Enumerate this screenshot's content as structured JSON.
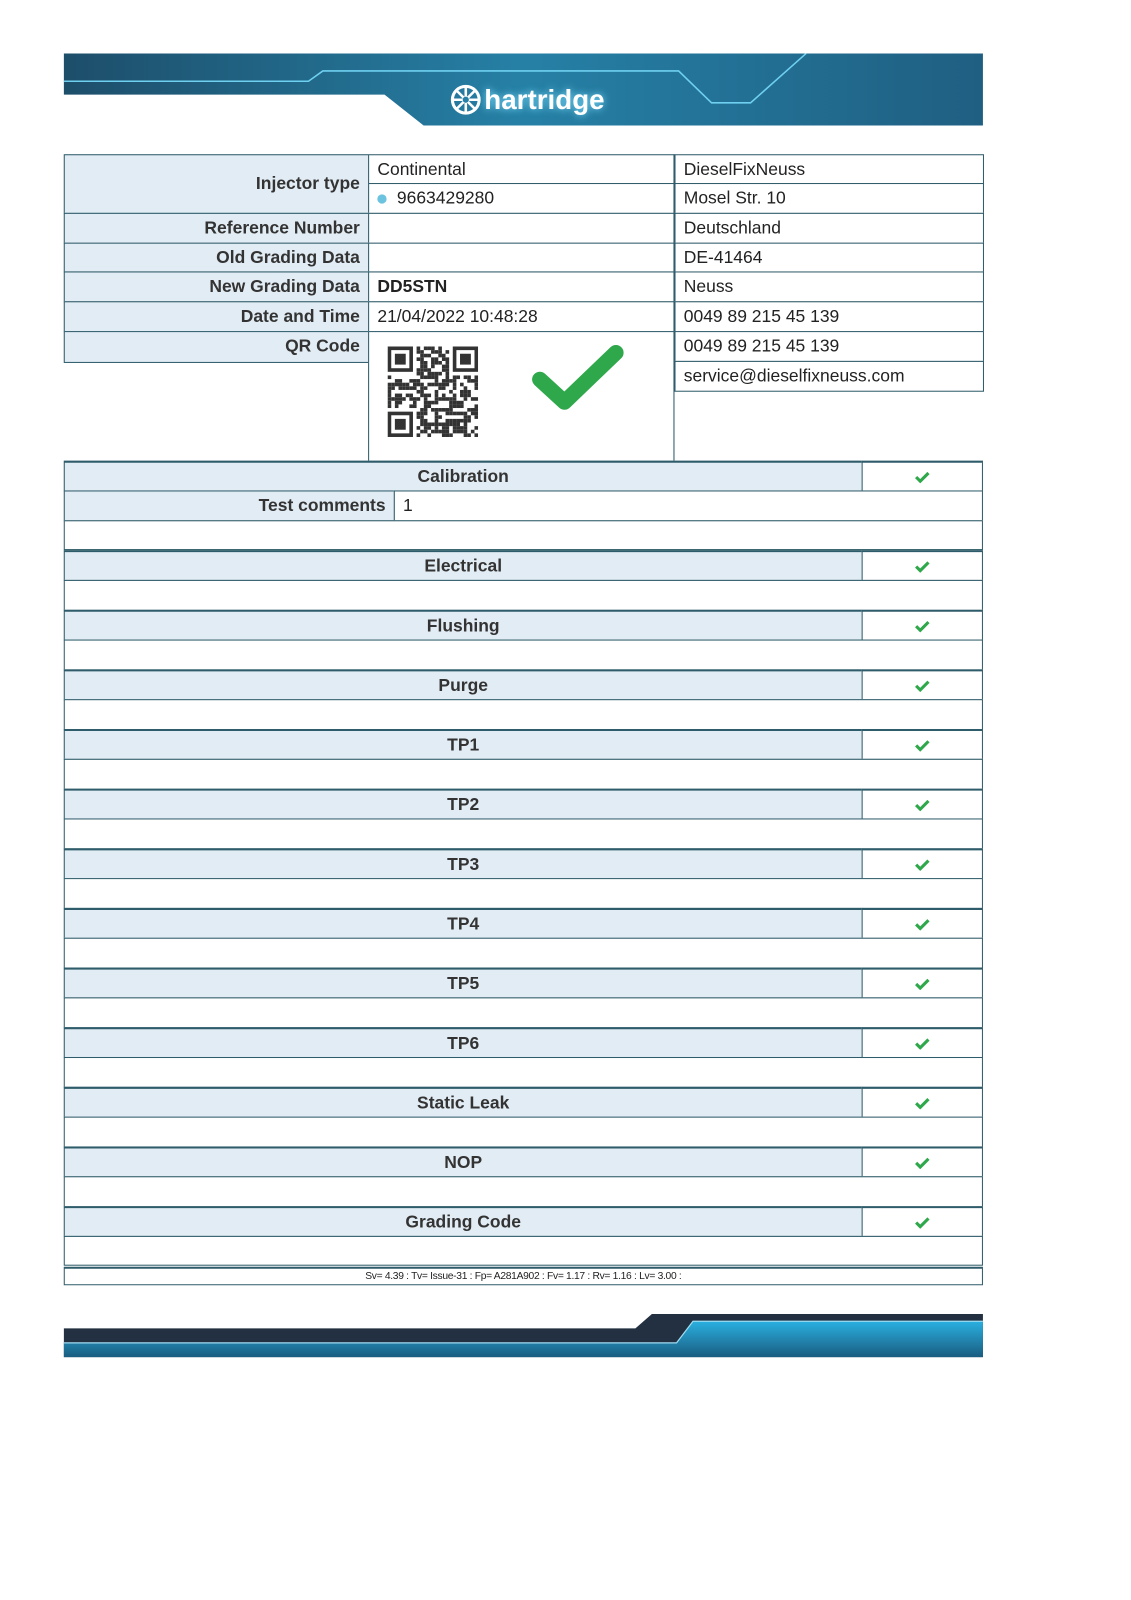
{
  "brand": {
    "logo_text": "hartridge",
    "colors": {
      "band_dark": "#1d4e6a",
      "band_light": "#2b86ad",
      "footer_dark": "#223042",
      "footer_light": "#29a6d6"
    }
  },
  "info": {
    "injector_type_label": "Injector type",
    "injector_type_value": "Continental",
    "injector_number": "9663429280",
    "reference_number_label": "Reference Number",
    "reference_number_value": "",
    "old_grading_label": "Old Grading Data",
    "old_grading_value": "",
    "new_grading_label": "New Grading Data",
    "new_grading_value": "DD5STN",
    "date_time_label": "Date and Time",
    "date_time_value": "21/04/2022 10:48:28",
    "qr_code_label": "QR Code",
    "overall_status": "pass",
    "status_color": "#2ea84a"
  },
  "company": {
    "lines": [
      "DieselFixNeuss",
      "Mosel Str. 10",
      "Deutschland",
      "DE-41464",
      "Neuss",
      "0049 89 215 45 139",
      "0049 89 215 45 139",
      "service@dieselfixneuss.com"
    ]
  },
  "calibration": {
    "label": "Calibration",
    "status": "pass",
    "comments_label": "Test comments",
    "comments_value": "1"
  },
  "sections": [
    {
      "label": "Electrical",
      "status": "pass"
    },
    {
      "label": "Flushing",
      "status": "pass"
    },
    {
      "label": "Purge",
      "status": "pass"
    },
    {
      "label": "TP1",
      "status": "pass"
    },
    {
      "label": "TP2",
      "status": "pass"
    },
    {
      "label": "TP3",
      "status": "pass"
    },
    {
      "label": "TP4",
      "status": "pass"
    },
    {
      "label": "TP5",
      "status": "pass"
    },
    {
      "label": "TP6",
      "status": "pass"
    },
    {
      "label": "Static Leak",
      "status": "pass"
    },
    {
      "label": "NOP",
      "status": "pass"
    },
    {
      "label": "Grading Code",
      "status": "pass"
    }
  ],
  "footer_versions": "Sv= 4.39  :  Tv= Issue-31  :  Fp= A281A902  :  Fv= 1.17  :  Rv= 1.16  :  Lv= 3.00  :"
}
